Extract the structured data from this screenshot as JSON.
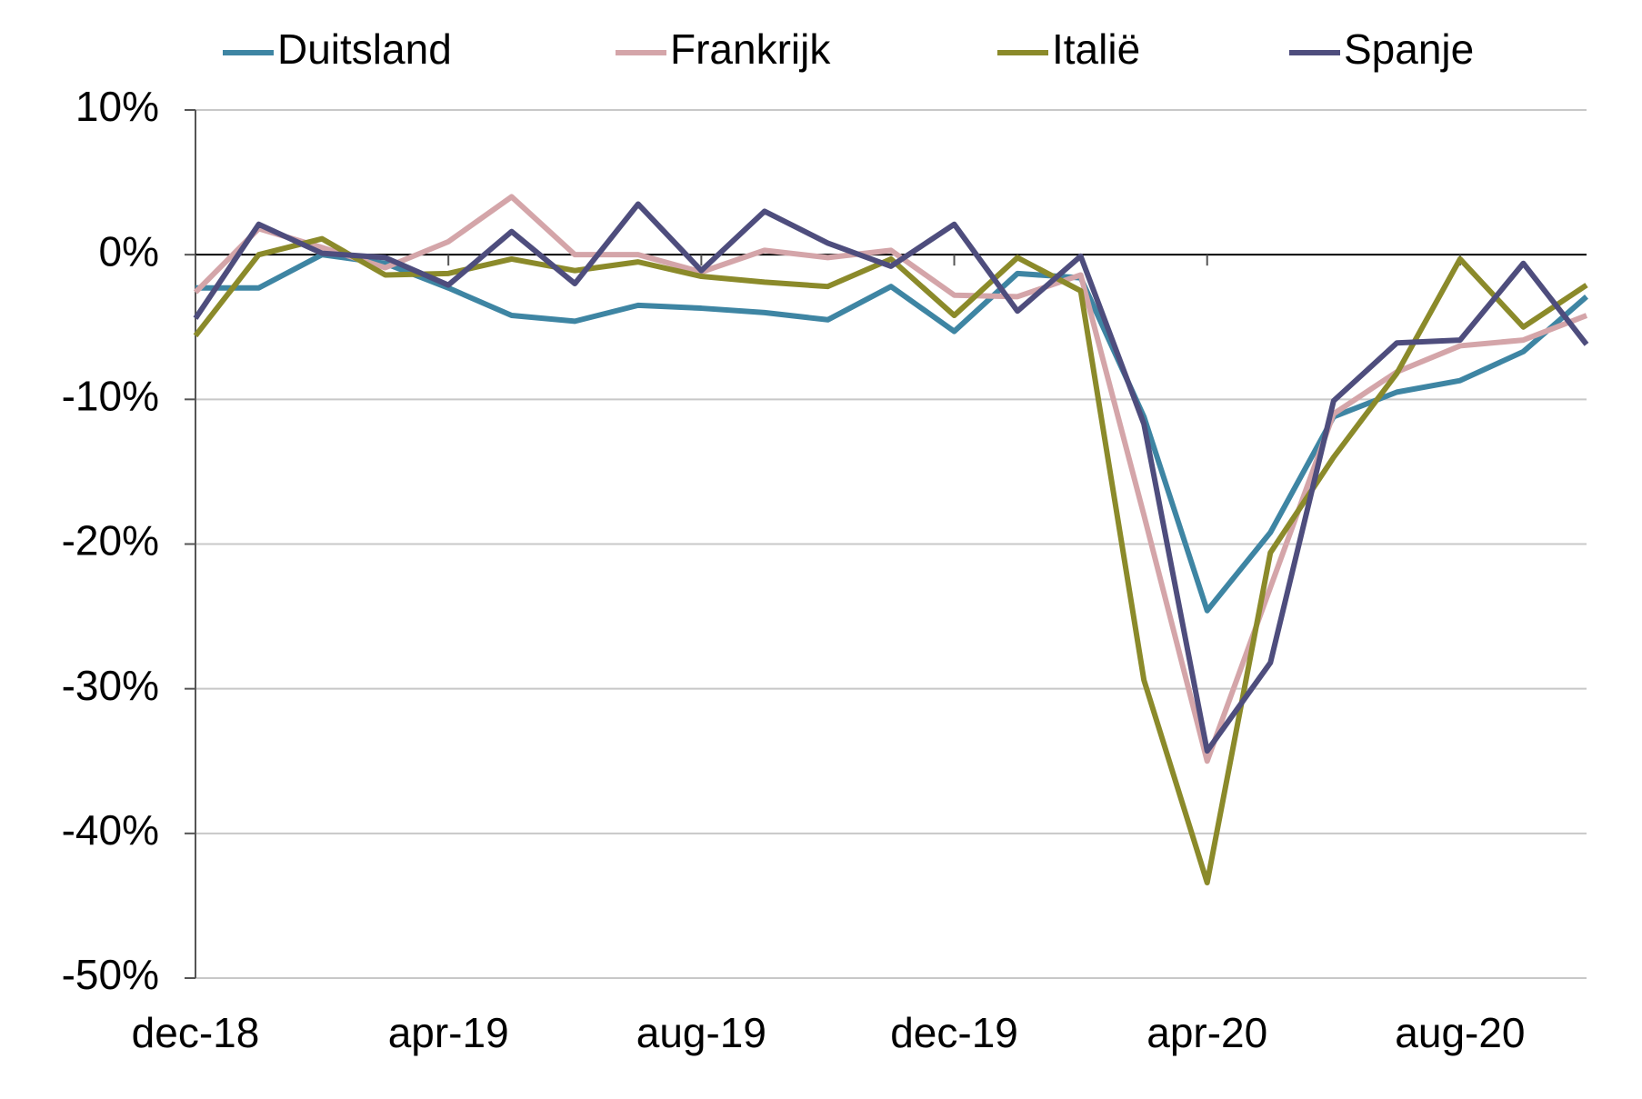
{
  "chart_data": {
    "type": "line",
    "categories": [
      "dec-18",
      null,
      null,
      null,
      "apr-19",
      null,
      null,
      null,
      "aug-19",
      null,
      null,
      null,
      "dec-19",
      null,
      null,
      null,
      "apr-20",
      null,
      null,
      null,
      "aug-20",
      null,
      null
    ],
    "series": [
      {
        "name": "Duitsland",
        "color": "#3e85a3",
        "values": [
          -2.3,
          -2.3,
          0,
          -0.6,
          -2.3,
          -4.2,
          -4.6,
          -3.5,
          -3.7,
          -4.0,
          -4.5,
          -2.2,
          -5.3,
          -1.3,
          -1.6,
          -11.2,
          -24.6,
          -19.2,
          -11.2,
          -9.5,
          -8.7,
          -6.7,
          -2.9
        ]
      },
      {
        "name": "Frankrijk",
        "color": "#d4a5a9",
        "values": [
          -2.6,
          1.8,
          0.5,
          -0.9,
          0.9,
          4.0,
          0,
          0,
          -1.2,
          0.3,
          -0.2,
          0.3,
          -2.8,
          -2.9,
          -1.4,
          -18,
          -35,
          -23,
          -11,
          -8.1,
          -6.3,
          -5.9,
          -4.2
        ]
      },
      {
        "name": "Italië",
        "color": "#8b8a2a",
        "values": [
          -5.6,
          0,
          1.1,
          -1.4,
          -1.3,
          -0.3,
          -1.1,
          -0.5,
          -1.5,
          -1.9,
          -2.2,
          -0.3,
          -4.2,
          -0.2,
          -2.5,
          -29.4,
          -43.4,
          -20.6,
          -14,
          -8.2,
          -0.3,
          -5,
          -2.1
        ]
      },
      {
        "name": "Spanje",
        "color": "#4e4d7d",
        "values": [
          -4.4,
          2.1,
          0.1,
          -0.2,
          -2.1,
          1.6,
          -2,
          3.5,
          -1.1,
          3,
          0.8,
          -0.8,
          2.1,
          -3.9,
          -0.1,
          -11.7,
          -34.3,
          -28.2,
          -10.1,
          -6.1,
          -5.9,
          -0.6,
          -6.2
        ]
      }
    ],
    "ylim": [
      -50,
      10
    ],
    "yticks": [
      {
        "value": 10,
        "label": "10%"
      },
      {
        "value": 0,
        "label": "0%"
      },
      {
        "value": -10,
        "label": "-10%"
      },
      {
        "value": -20,
        "label": "-20%"
      },
      {
        "value": -30,
        "label": "-30%"
      },
      {
        "value": -40,
        "label": "-40%"
      },
      {
        "value": -50,
        "label": "-50%"
      }
    ],
    "grid": true,
    "legend": "top"
  }
}
